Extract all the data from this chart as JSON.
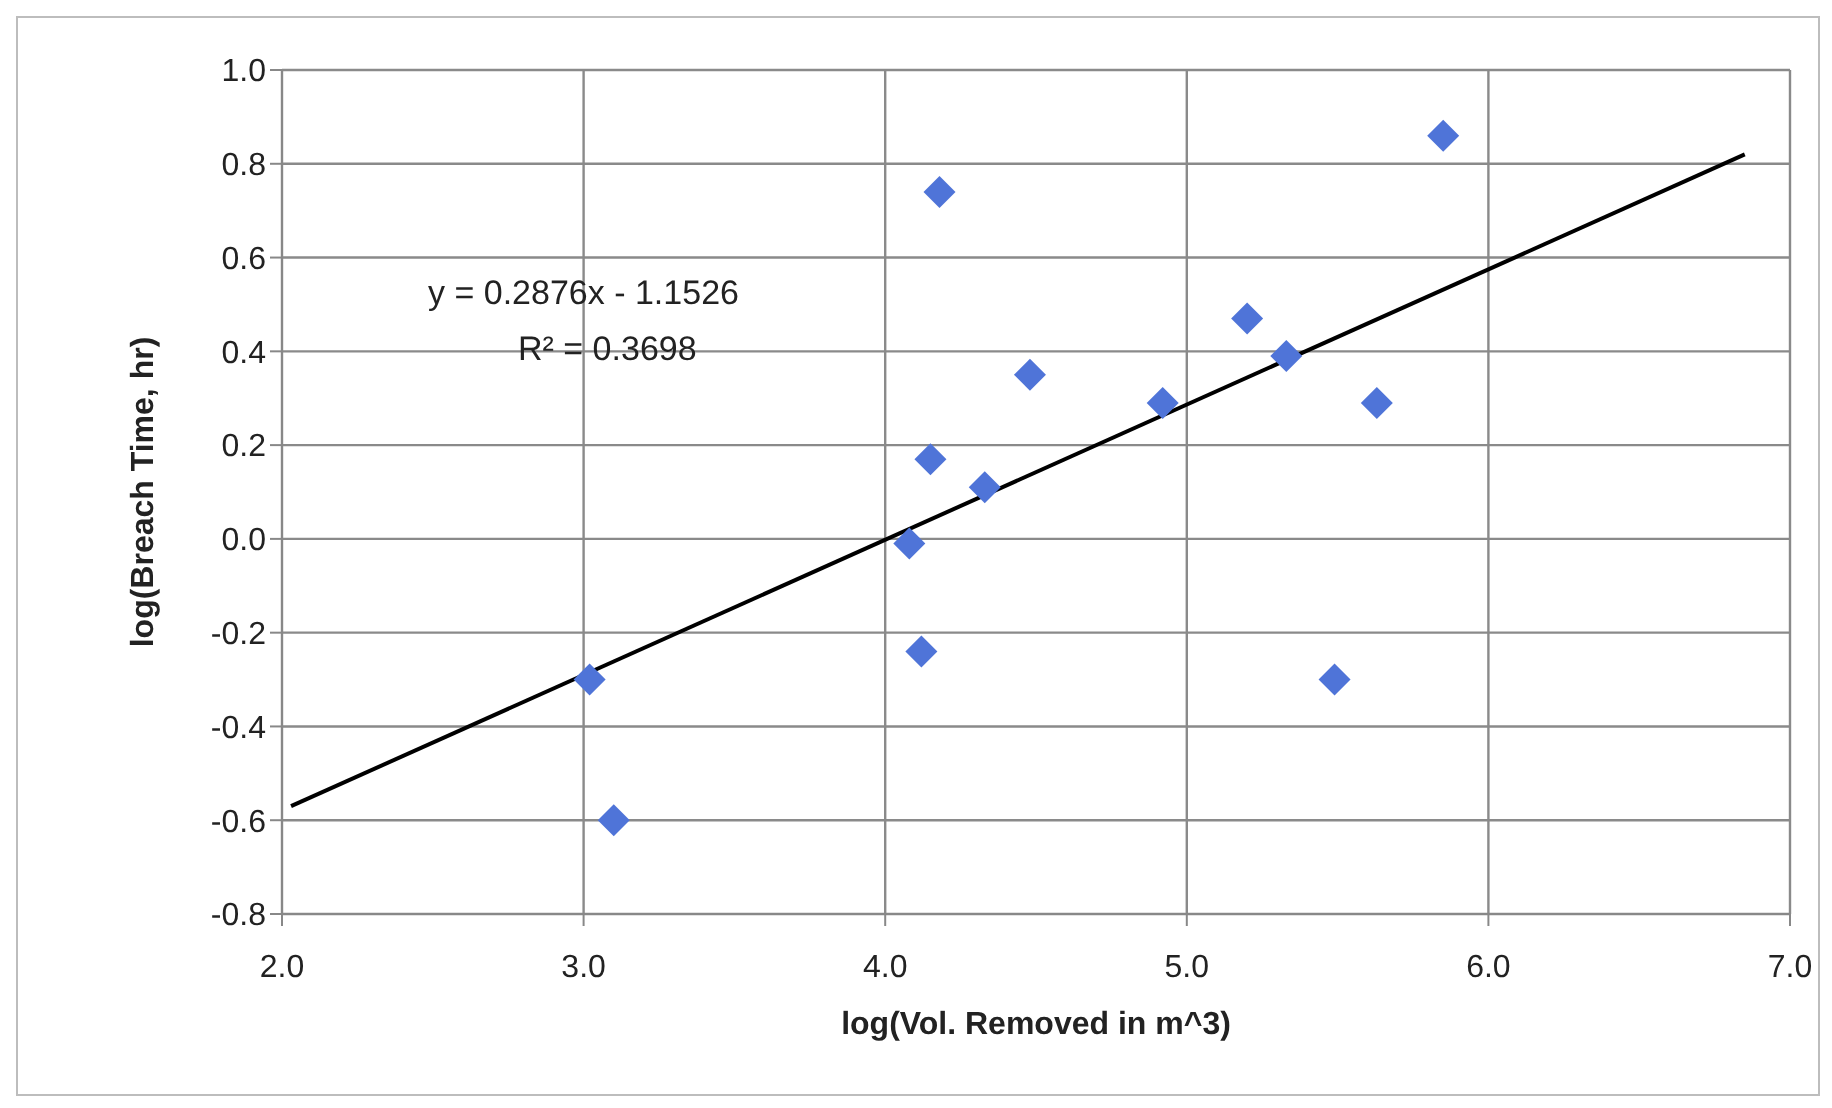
{
  "chart_data": {
    "type": "scatter",
    "xlabel": "log(Vol. Removed in m^3)",
    "ylabel": "log(Breach Time, hr)",
    "xlim": [
      2.0,
      7.0
    ],
    "xticks": [
      {
        "value": 2,
        "label": "2.0"
      },
      {
        "value": 3,
        "label": "3.0"
      },
      {
        "value": 4,
        "label": "4.0"
      },
      {
        "value": 5,
        "label": "5.0"
      },
      {
        "value": 6,
        "label": "6.0"
      },
      {
        "value": 7,
        "label": "7.0"
      }
    ],
    "ylim": [
      -0.8,
      1.0
    ],
    "yticks": [
      {
        "value": -0.8,
        "label": "-0.8"
      },
      {
        "value": -0.6,
        "label": "-0.6"
      },
      {
        "value": -0.4,
        "label": "-0.4"
      },
      {
        "value": -0.2,
        "label": "-0.2"
      },
      {
        "value": 0,
        "label": "0.0"
      },
      {
        "value": 0.2,
        "label": "0.2"
      },
      {
        "value": 0.4,
        "label": "0.4"
      },
      {
        "value": 0.6,
        "label": "0.6"
      },
      {
        "value": 0.8,
        "label": "0.8"
      },
      {
        "value": 1.0,
        "label": "1.0"
      }
    ],
    "grid": true,
    "marker": "diamond",
    "series": [
      {
        "color": "#4f74d8",
        "x": [
          3.02,
          3.1,
          4.08,
          4.12,
          4.15,
          4.18,
          4.33,
          4.48,
          4.92,
          5.2,
          5.33,
          5.49,
          5.63,
          5.85
        ],
        "values": [
          -0.3,
          -0.6,
          -0.01,
          -0.24,
          0.17,
          0.74,
          0.11,
          0.35,
          0.29,
          0.47,
          0.39,
          -0.3,
          0.29,
          0.86
        ]
      },
      {
        "type": "line",
        "color": "#000000",
        "marker": "none",
        "x": [
          2.03,
          6.85
        ],
        "values": [
          -0.57,
          0.82
        ]
      }
    ],
    "annotations": [
      "y = 0.2876x - 1.1526",
      "R² = 0.3698"
    ]
  }
}
